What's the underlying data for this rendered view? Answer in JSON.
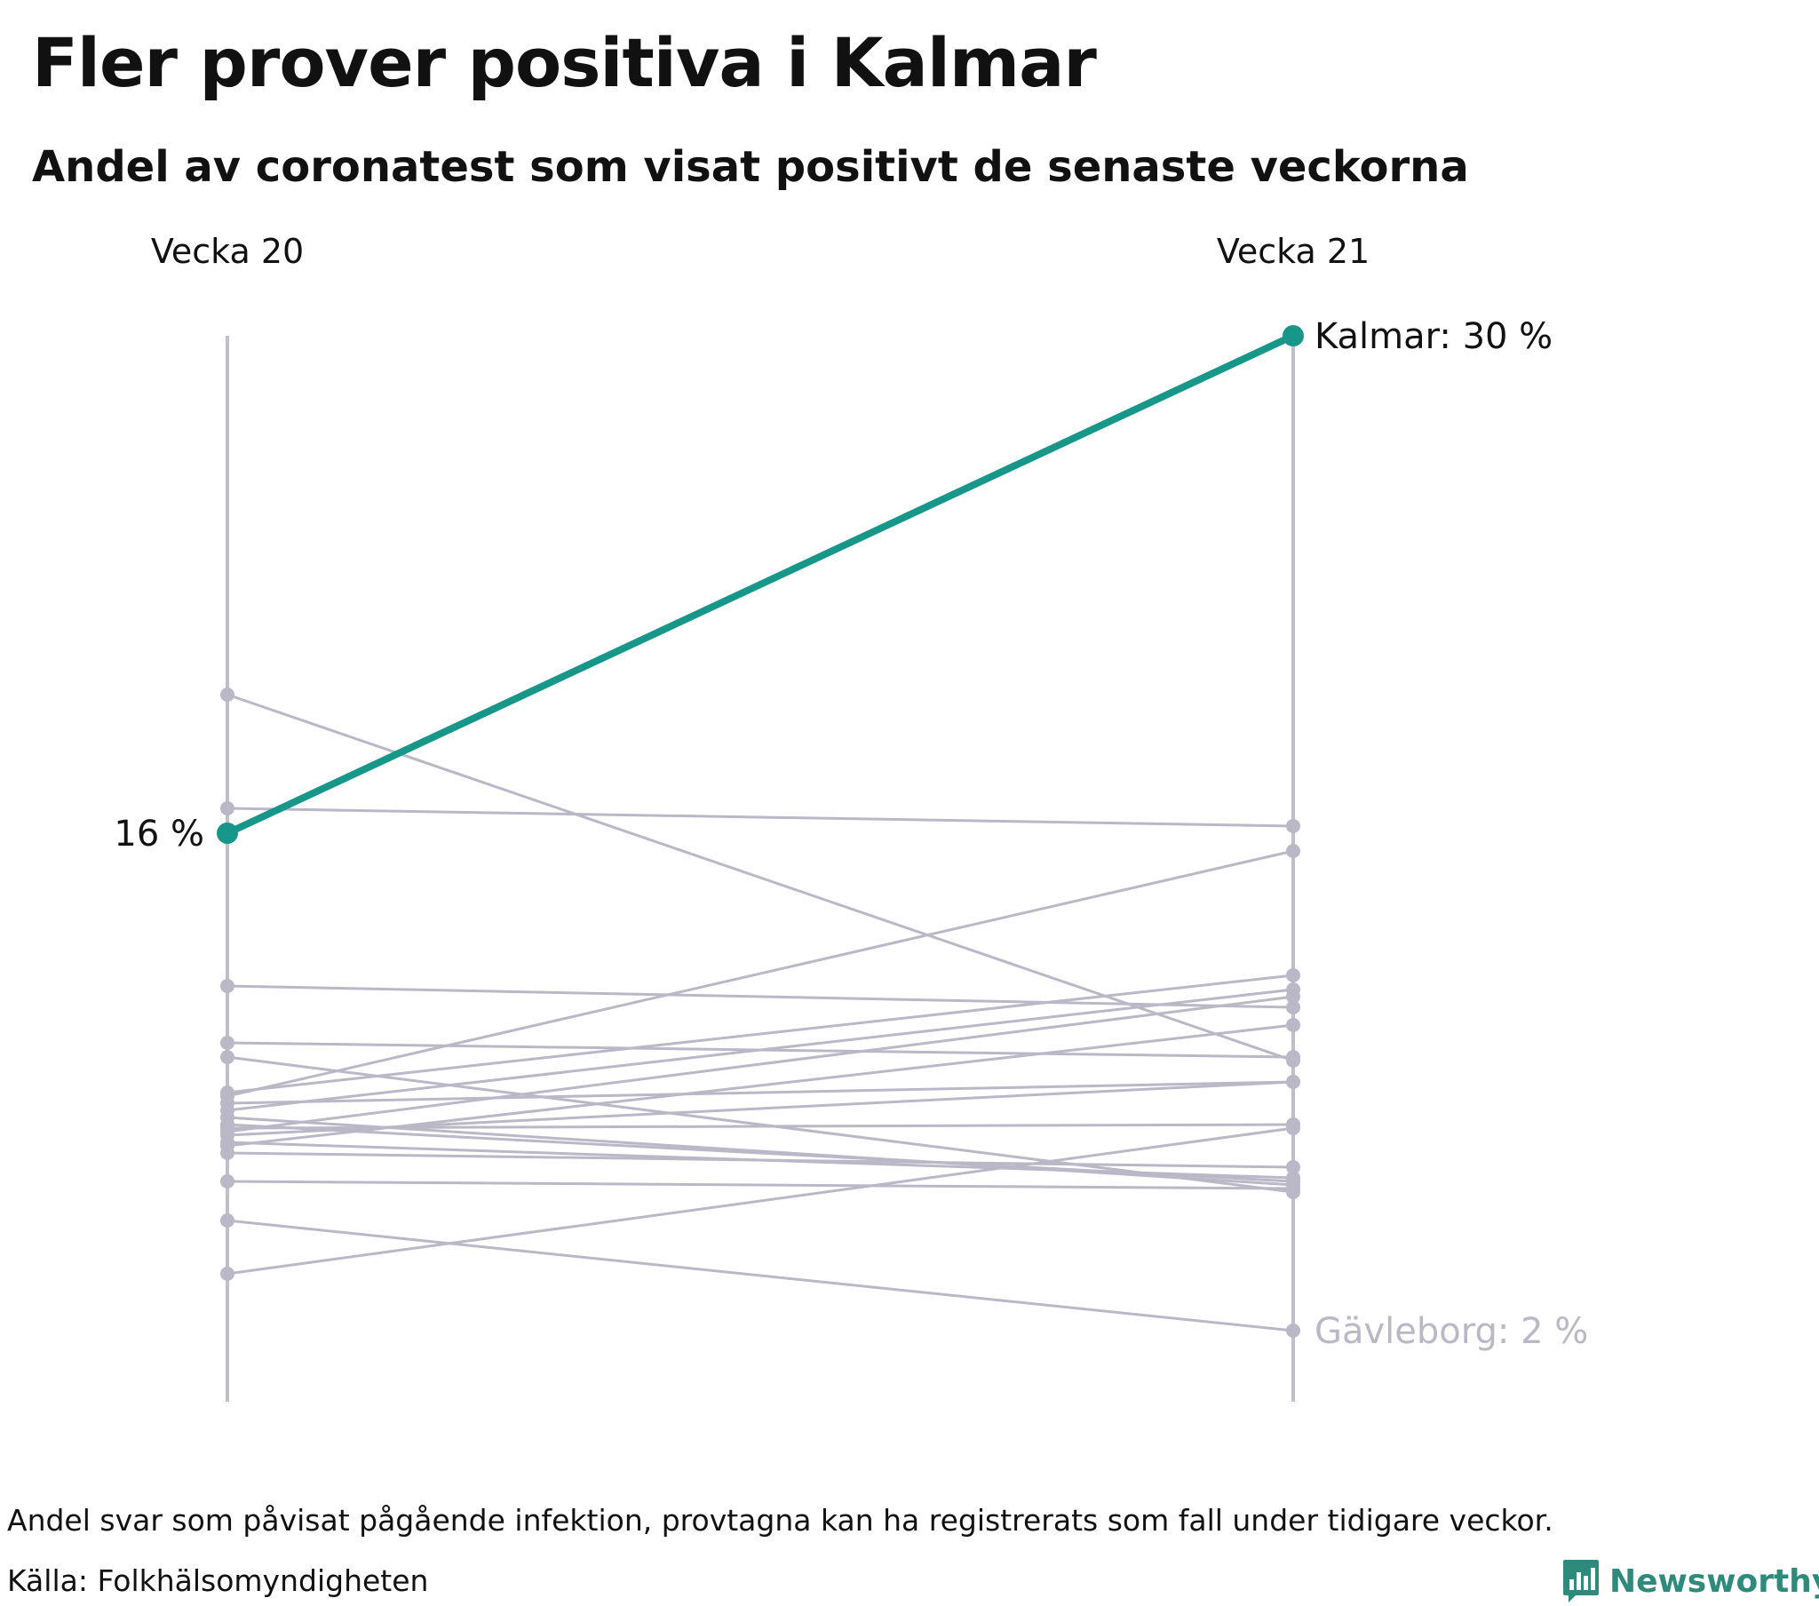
{
  "title": "Fler prover positiva i Kalmar",
  "subtitle": "Andel av coronatest som visat positivt de senaste veckorna",
  "footnote": "Andel svar som påvisat pågående infektion, provtagna kan ha registrerats som fall under tidigare veckor.",
  "source": "Källa: Folkhälsomyndigheten",
  "brand": {
    "name": "Newsworthy",
    "icon": "newsworthy-chart-logo-icon",
    "color": "#2e8b7c"
  },
  "colors": {
    "highlight": "#17968a",
    "muted": "#bab8c6",
    "axis": "#c0bec9",
    "muted_label": "#bab8c6",
    "text": "#111111"
  },
  "chart_data": {
    "type": "slope",
    "categories": [
      "Vecka 20",
      "Vecka 21"
    ],
    "ylim": [
      0,
      30
    ],
    "grid": false,
    "highlight": {
      "name": "Kalmar",
      "values": [
        16,
        30
      ],
      "start_label": "16 %",
      "end_label": "Kalmar: 30 %"
    },
    "low_annotation": {
      "name": "Gävleborg",
      "values": [
        5.1,
        2
      ],
      "end_label": "Gävleborg: 2 %"
    },
    "other_series": [
      {
        "values": [
          19.9,
          9.6
        ]
      },
      {
        "values": [
          16.7,
          16.2
        ]
      },
      {
        "values": [
          11.7,
          11.1
        ]
      },
      {
        "values": [
          10.1,
          9.7
        ]
      },
      {
        "values": [
          9.7,
          5.9
        ]
      },
      {
        "values": [
          8.7,
          12.0
        ]
      },
      {
        "values": [
          8.6,
          15.5
        ]
      },
      {
        "values": [
          8.4,
          9.0
        ]
      },
      {
        "values": [
          8.2,
          11.6
        ]
      },
      {
        "values": [
          8.0,
          6.1
        ]
      },
      {
        "values": [
          7.8,
          6.2
        ]
      },
      {
        "values": [
          7.7,
          7.8
        ]
      },
      {
        "values": [
          7.6,
          11.4
        ]
      },
      {
        "values": [
          7.5,
          9.0
        ]
      },
      {
        "values": [
          7.3,
          6.3
        ]
      },
      {
        "values": [
          7.2,
          10.6
        ]
      },
      {
        "values": [
          7.0,
          6.6
        ]
      },
      {
        "values": [
          6.2,
          6.0
        ]
      },
      {
        "values": [
          3.6,
          7.7
        ]
      }
    ]
  }
}
